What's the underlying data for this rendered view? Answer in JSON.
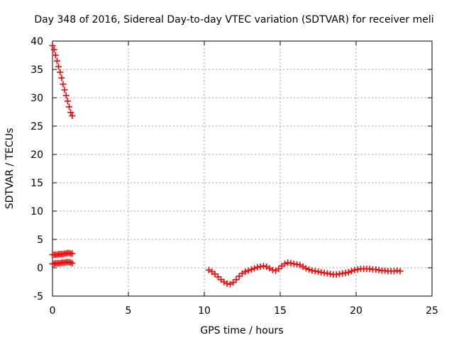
{
  "chart_data": {
    "type": "scatter",
    "title": "Day 348 of 2016, Sidereal Day-to-day VTEC variation (SDTVAR) for receiver meli",
    "xlabel": "GPS time / hours",
    "ylabel": "SDTVAR / TECUs",
    "xlim": [
      0,
      25
    ],
    "ylim": [
      -5,
      40
    ],
    "xticks": [
      "0",
      "5",
      "10",
      "15",
      "20",
      "25"
    ],
    "yticks": [
      "-5",
      "0",
      "5",
      "10",
      "15",
      "20",
      "25",
      "30",
      "35",
      "40"
    ],
    "grid": true,
    "marker": "plus",
    "series": [
      {
        "color": "#ff0000",
        "segments": [
          {
            "x": [
              0.0,
              0.1,
              0.2,
              0.3,
              0.4,
              0.5,
              0.6,
              0.7,
              0.8,
              0.9,
              1.0,
              1.1,
              1.2,
              1.3
            ],
            "y": [
              39.2,
              38.5,
              37.5,
              36.5,
              35.5,
              34.5,
              33.5,
              32.4,
              31.4,
              30.4,
              29.4,
              28.4,
              27.4,
              26.8
            ]
          },
          {
            "x": [
              0.0,
              0.1,
              0.2,
              0.3,
              0.4,
              0.5,
              0.6,
              0.7,
              0.8,
              0.9,
              1.0,
              1.1,
              1.2,
              1.3
            ],
            "y": [
              2.3,
              2.3,
              2.3,
              2.3,
              2.4,
              2.4,
              2.4,
              2.4,
              2.5,
              2.5,
              2.6,
              2.6,
              2.5,
              2.5
            ]
          },
          {
            "x": [
              0.0,
              0.1,
              0.2,
              0.3,
              0.4,
              0.5,
              0.6,
              0.7,
              0.8,
              0.9,
              1.0,
              1.1,
              1.2,
              1.3
            ],
            "y": [
              0.7,
              0.7,
              0.8,
              0.8,
              0.8,
              0.8,
              0.9,
              0.9,
              0.9,
              1.0,
              1.0,
              1.0,
              0.9,
              0.8
            ]
          },
          {
            "x": [
              10.3,
              10.5,
              10.7,
              10.9,
              11.1,
              11.3,
              11.5,
              11.7,
              11.9,
              12.1,
              12.3,
              12.5,
              12.7,
              12.9,
              13.1,
              13.3,
              13.5,
              13.7,
              13.9,
              14.1,
              14.3,
              14.5,
              14.7,
              14.9,
              15.1,
              15.3,
              15.5,
              15.7,
              15.9,
              16.1,
              16.3,
              16.5,
              16.7,
              16.9,
              17.1,
              17.3,
              17.5,
              17.7,
              17.9,
              18.1,
              18.3,
              18.5,
              18.7,
              18.9,
              19.1,
              19.3,
              19.5,
              19.7,
              19.9,
              20.1,
              20.3,
              20.5,
              20.7,
              20.9,
              21.1,
              21.3,
              21.5,
              21.7,
              21.9,
              22.1,
              22.3,
              22.5,
              22.7,
              22.9
            ],
            "y": [
              -0.4,
              -0.7,
              -1.1,
              -1.6,
              -2.1,
              -2.5,
              -2.8,
              -2.9,
              -2.6,
              -2.1,
              -1.5,
              -1.0,
              -0.7,
              -0.5,
              -0.3,
              -0.1,
              0.1,
              0.2,
              0.3,
              0.2,
              -0.1,
              -0.4,
              -0.5,
              -0.2,
              0.3,
              0.7,
              0.9,
              0.8,
              0.7,
              0.6,
              0.5,
              0.2,
              -0.1,
              -0.3,
              -0.5,
              -0.6,
              -0.7,
              -0.8,
              -0.9,
              -1.0,
              -1.1,
              -1.2,
              -1.2,
              -1.1,
              -1.0,
              -0.9,
              -0.8,
              -0.6,
              -0.4,
              -0.3,
              -0.2,
              -0.2,
              -0.2,
              -0.2,
              -0.3,
              -0.3,
              -0.4,
              -0.5,
              -0.5,
              -0.6,
              -0.6,
              -0.6,
              -0.5,
              -0.6
            ]
          }
        ]
      }
    ]
  }
}
